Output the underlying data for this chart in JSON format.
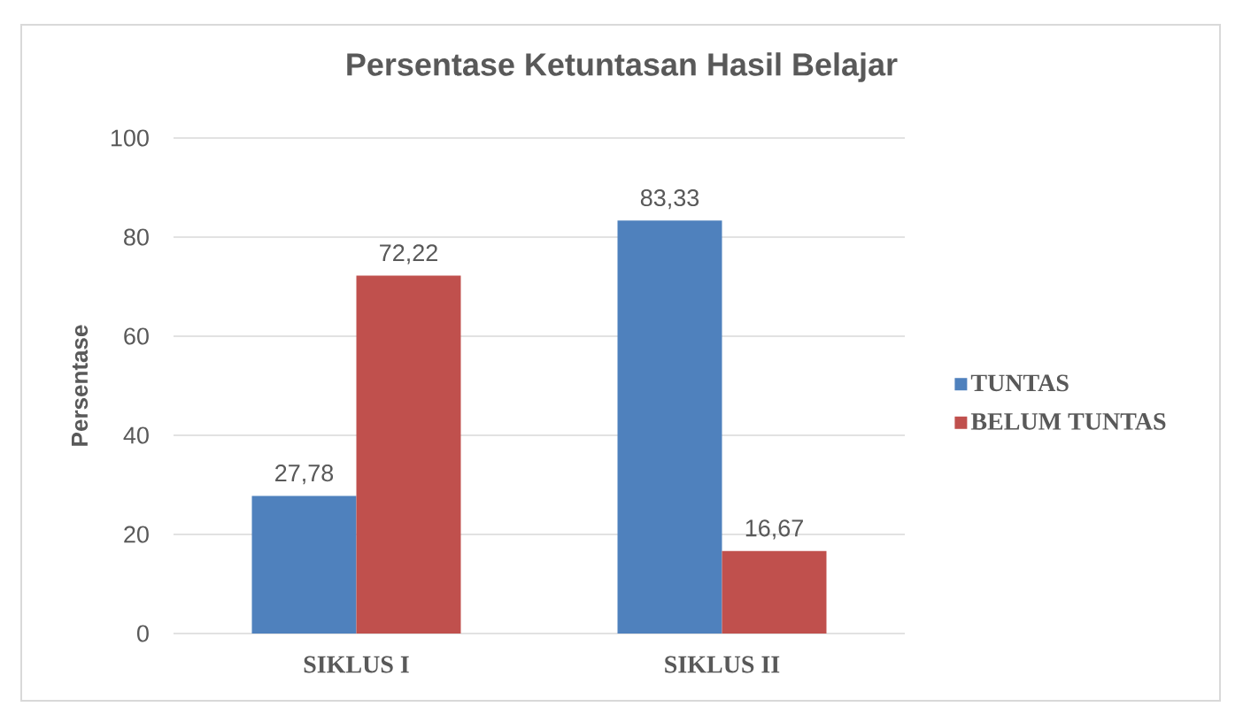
{
  "chart_data": {
    "type": "bar",
    "title": "Persentase Ketuntasan Hasil Belajar",
    "ylabel": "Persentase",
    "categories": [
      "SIKLUS I",
      "SIKLUS II"
    ],
    "series": [
      {
        "name": "TUNTAS",
        "color": "#4f81bd",
        "values": [
          27.78,
          83.33
        ],
        "value_labels": [
          "27,78",
          "83,33"
        ]
      },
      {
        "name": "BELUM TUNTAS",
        "color": "#c0504d",
        "values": [
          72.22,
          16.67
        ],
        "value_labels": [
          "72,22",
          "16,67"
        ]
      }
    ],
    "ylim": [
      0,
      100
    ],
    "yticks": [
      0,
      20,
      40,
      60,
      80,
      100
    ],
    "grid": "y",
    "legend": "right"
  }
}
